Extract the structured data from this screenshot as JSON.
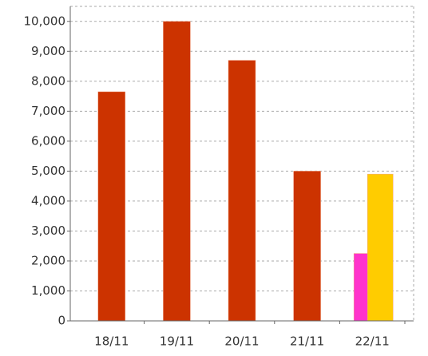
{
  "chart_data": {
    "type": "bar",
    "categories": [
      "18/11",
      "19/11",
      "20/11",
      "21/11",
      "22/11"
    ],
    "series": [
      {
        "color": "#cc3300",
        "values": [
          7650,
          10000,
          8700,
          5000,
          null
        ]
      },
      {
        "color": "#ff33cc",
        "values": [
          null,
          null,
          null,
          null,
          2250
        ]
      },
      {
        "color": "#ffcc00",
        "values": [
          null,
          null,
          null,
          null,
          4900
        ]
      }
    ],
    "ylim": [
      0,
      10500
    ],
    "yticks": [
      0,
      {
        "value": 1000,
        "label": "1,000"
      },
      {
        "value": 2000,
        "label": "2,000"
      },
      {
        "value": 3000,
        "label": "3,000"
      },
      {
        "value": 4000,
        "label": "4,000"
      },
      {
        "value": 5000,
        "label": "5,000"
      },
      {
        "value": 6000,
        "label": "6,000"
      },
      {
        "value": 7000,
        "label": "7,000"
      },
      {
        "value": 8000,
        "label": "8,000"
      },
      {
        "value": 9000,
        "label": "9,000"
      },
      {
        "value": 10000,
        "label": "10,000"
      }
    ],
    "grid": true
  }
}
